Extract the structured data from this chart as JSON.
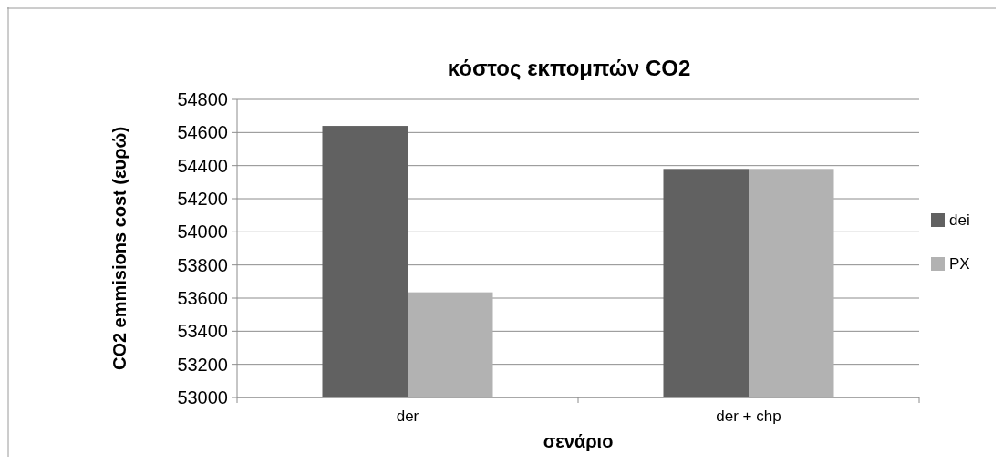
{
  "chart_data": {
    "type": "bar",
    "title": "κόστος εκπομπών CO2",
    "xlabel": "σενάριο",
    "ylabel": "CO2 emmisions cost (ευρώ)",
    "categories": [
      "der",
      "der + chp"
    ],
    "series": [
      {
        "name": "dei",
        "color": "#616161",
        "values": [
          54640,
          54380
        ]
      },
      {
        "name": "PX",
        "color": "#b2b2b2",
        "values": [
          53635,
          54380
        ]
      }
    ],
    "ylim": [
      53000,
      54800
    ],
    "yticks": [
      53000,
      53200,
      53400,
      53600,
      53800,
      54000,
      54200,
      54400,
      54600,
      54800
    ],
    "grid": "y",
    "legend": "right"
  }
}
